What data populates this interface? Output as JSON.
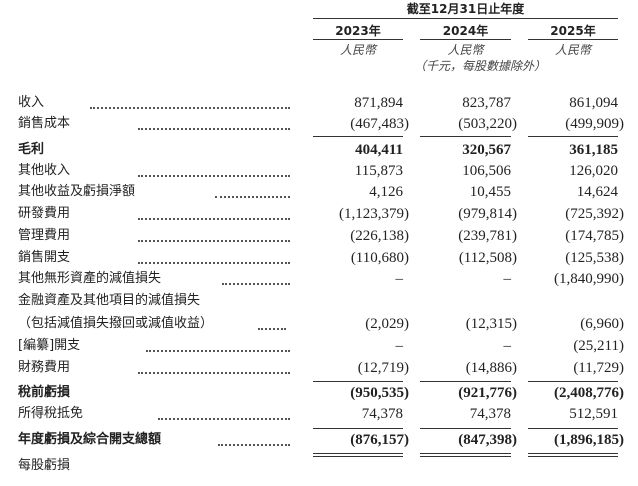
{
  "header": {
    "period": "截至12月31日止年度",
    "years": [
      "2023年",
      "2024年",
      "2025年"
    ],
    "currency": [
      "人民幣",
      "人民幣",
      "人民幣"
    ],
    "unit_note": "（千元，每股數據除外）"
  },
  "rows": [
    {
      "label": "收入",
      "values": [
        "871,894",
        "823,787",
        "861,094"
      ],
      "bold": false
    },
    {
      "label": "銷售成本",
      "values": [
        "(467,483)",
        "(503,220)",
        "(499,909)"
      ],
      "bold": false
    },
    {
      "label": "毛利",
      "values": [
        "404,411",
        "320,567",
        "361,185"
      ],
      "bold": true
    },
    {
      "label": "其他收入",
      "values": [
        "115,873",
        "106,506",
        "126,020"
      ],
      "bold": false
    },
    {
      "label": "其他收益及虧損淨額",
      "values": [
        "4,126",
        "10,455",
        "14,624"
      ],
      "bold": false
    },
    {
      "label": "研發費用",
      "values": [
        "(1,123,379)",
        "(979,814)",
        "(725,392)"
      ],
      "bold": false
    },
    {
      "label": "管理費用",
      "values": [
        "(226,138)",
        "(239,781)",
        "(174,785)"
      ],
      "bold": false
    },
    {
      "label": "銷售開支",
      "values": [
        "(110,680)",
        "(112,508)",
        "(125,538)"
      ],
      "bold": false
    },
    {
      "label": "其他無形資產的減值損失",
      "values": [
        "–",
        "–",
        "(1,840,990)"
      ],
      "bold": false
    },
    {
      "label": "金融資產及其他項目的減值損失",
      "values": [
        "",
        "",
        ""
      ],
      "bold": false
    },
    {
      "label": "（包括減值損失撥回或減值收益）",
      "values": [
        "(2,029)",
        "(12,315)",
        "(6,960)"
      ],
      "bold": false
    },
    {
      "label": "[編纂]開支",
      "values": [
        "–",
        "–",
        "(25,211)"
      ],
      "bold": false
    },
    {
      "label": "財務費用",
      "values": [
        "(12,719)",
        "(14,886)",
        "(11,729)"
      ],
      "bold": false
    },
    {
      "label": "稅前虧損",
      "values": [
        "(950,535)",
        "(921,776)",
        "(2,408,776)"
      ],
      "bold": true
    },
    {
      "label": "所得稅抵免",
      "values": [
        "74,378",
        "74,378",
        "512,591"
      ],
      "bold": false
    },
    {
      "label": "年度虧損及綜合開支總額",
      "values": [
        "(876,157)",
        "(847,398)",
        "(1,896,185)"
      ],
      "bold": true
    },
    {
      "label": "每股虧損",
      "values": [
        "",
        "",
        ""
      ],
      "bold": false
    }
  ]
}
